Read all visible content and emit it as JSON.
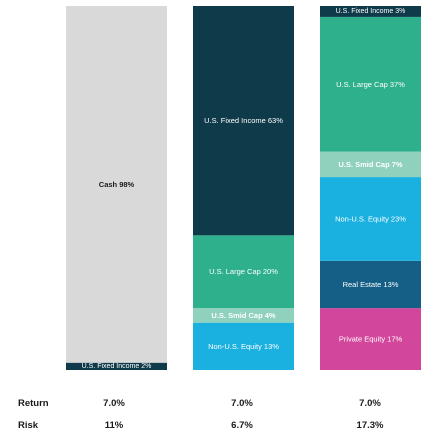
{
  "chart_data": {
    "type": "bar",
    "stacked": true,
    "unit": "%",
    "colors": {
      "Cash": "#d9d9d9",
      "U.S. Fixed Income": "#0f3a4a",
      "U.S. Large Cap": "#2fb08d",
      "U.S. Smid Cap": "#8fd1bd",
      "Non-U.S. Equity": "#1ab0e0",
      "Real Estate": "#155e85",
      "Private Equity": "#d2479c"
    },
    "bars": [
      {
        "segments": [
          {
            "name": "U.S. Fixed Income",
            "value": 2,
            "label": "U.S. Fixed Income 2%"
          },
          {
            "name": "Cash",
            "value": 98,
            "label": "Cash 98%"
          }
        ]
      },
      {
        "segments": [
          {
            "name": "Non-U.S. Equity",
            "value": 13,
            "label": "Non-U.S. Equity 13%"
          },
          {
            "name": "U.S. Smid Cap",
            "value": 4,
            "label": "U.S. Smid Cap 4%"
          },
          {
            "name": "U.S. Large Cap",
            "value": 20,
            "label": "U.S. Large Cap 20%"
          },
          {
            "name": "U.S. Fixed Income",
            "value": 63,
            "label": "U.S. Fixed Income 63%"
          }
        ]
      },
      {
        "segments": [
          {
            "name": "Private Equity",
            "value": 17,
            "label": "Private Equity 17%"
          },
          {
            "name": "Real Estate",
            "value": 13,
            "label": "Real Estate 13%"
          },
          {
            "name": "Non-U.S. Equity",
            "value": 23,
            "label": "Non-U.S. Equity 23%"
          },
          {
            "name": "U.S. Smid Cap",
            "value": 7,
            "label": "U.S. Smid Cap 7%"
          },
          {
            "name": "U.S. Large Cap",
            "value": 37,
            "label": "U.S. Large Cap 37%"
          },
          {
            "name": "U.S. Fixed Income",
            "value": 3,
            "label": "U.S. Fixed Income 3%"
          }
        ]
      }
    ]
  },
  "stats": {
    "return_label": "Return",
    "risk_label": "Risk",
    "returns": [
      "7.0%",
      "7.0%",
      "7.0%"
    ],
    "risks": [
      "11%",
      "6.7%",
      "17.3%"
    ]
  }
}
